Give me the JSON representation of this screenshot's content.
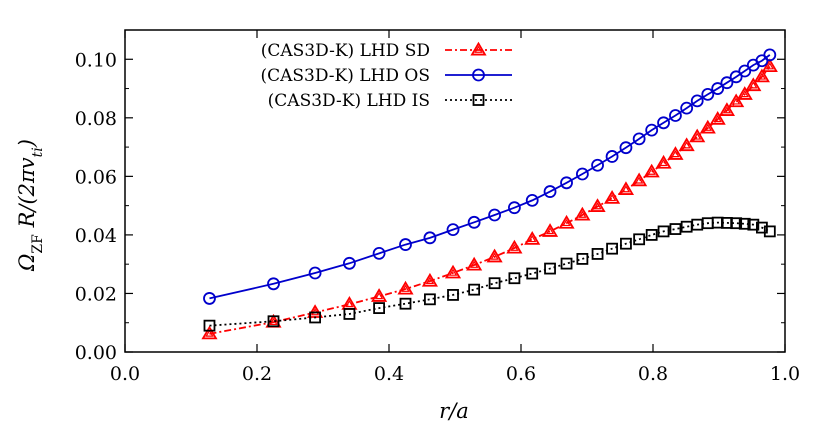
{
  "chart_data": {
    "type": "line",
    "xlabel": "r/a",
    "ylabel": "Ω_ZF R/(2πv_ti)",
    "xlim": [
      0.0,
      1.0
    ],
    "ylim": [
      0.0,
      0.11
    ],
    "x_ticks": [
      "0.0",
      "0.2",
      "0.4",
      "0.6",
      "0.8",
      "1.0"
    ],
    "y_ticks": [
      "0.00",
      "0.02",
      "0.04",
      "0.06",
      "0.08",
      "0.10"
    ],
    "legend_position": "top-center",
    "series": [
      {
        "name": "(CAS3D-K) LHD SD",
        "color": "#ff0000",
        "marker": "triangle",
        "line_style": "dash-dot",
        "x": [
          0.128,
          0.225,
          0.288,
          0.34,
          0.385,
          0.425,
          0.462,
          0.497,
          0.529,
          0.56,
          0.59,
          0.617,
          0.644,
          0.669,
          0.693,
          0.716,
          0.738,
          0.759,
          0.779,
          0.798,
          0.816,
          0.834,
          0.851,
          0.867,
          0.883,
          0.898,
          0.912,
          0.926,
          0.939,
          0.952,
          0.965,
          0.977
        ],
        "y": [
          0.0062,
          0.0102,
          0.0135,
          0.0163,
          0.019,
          0.0215,
          0.0242,
          0.027,
          0.0297,
          0.0325,
          0.0355,
          0.0385,
          0.0412,
          0.044,
          0.0468,
          0.0497,
          0.0525,
          0.0555,
          0.0585,
          0.0615,
          0.0645,
          0.0675,
          0.0705,
          0.0735,
          0.0765,
          0.0795,
          0.0825,
          0.0855,
          0.088,
          0.091,
          0.094,
          0.0975
        ]
      },
      {
        "name": "(CAS3D-K) LHD OS",
        "color": "#0000cc",
        "marker": "circle",
        "line_style": "solid",
        "x": [
          0.128,
          0.225,
          0.288,
          0.34,
          0.385,
          0.425,
          0.462,
          0.497,
          0.529,
          0.56,
          0.59,
          0.617,
          0.644,
          0.669,
          0.693,
          0.716,
          0.738,
          0.759,
          0.779,
          0.798,
          0.816,
          0.834,
          0.851,
          0.867,
          0.883,
          0.898,
          0.912,
          0.926,
          0.939,
          0.952,
          0.965,
          0.977
        ],
        "y": [
          0.0183,
          0.0233,
          0.027,
          0.0303,
          0.0337,
          0.0367,
          0.039,
          0.0418,
          0.0443,
          0.0468,
          0.0493,
          0.0518,
          0.0548,
          0.0578,
          0.0608,
          0.0638,
          0.0668,
          0.0698,
          0.0728,
          0.0758,
          0.0783,
          0.0808,
          0.0833,
          0.0858,
          0.088,
          0.09,
          0.092,
          0.094,
          0.096,
          0.098,
          0.0995,
          0.1015
        ]
      },
      {
        "name": "(CAS3D-K) LHD IS",
        "color": "#000000",
        "marker": "square",
        "line_style": "dotted",
        "x": [
          0.128,
          0.225,
          0.288,
          0.34,
          0.385,
          0.425,
          0.462,
          0.497,
          0.529,
          0.56,
          0.59,
          0.617,
          0.644,
          0.669,
          0.693,
          0.716,
          0.738,
          0.759,
          0.779,
          0.798,
          0.816,
          0.834,
          0.851,
          0.867,
          0.883,
          0.898,
          0.912,
          0.926,
          0.939,
          0.952,
          0.965,
          0.977
        ],
        "y": [
          0.009,
          0.0105,
          0.0118,
          0.013,
          0.015,
          0.0165,
          0.018,
          0.0195,
          0.0213,
          0.0235,
          0.0252,
          0.0268,
          0.0285,
          0.0302,
          0.0318,
          0.0335,
          0.0353,
          0.037,
          0.0385,
          0.04,
          0.0412,
          0.042,
          0.0428,
          0.0435,
          0.044,
          0.0442,
          0.0441,
          0.044,
          0.0438,
          0.0435,
          0.0425,
          0.0412
        ]
      }
    ]
  }
}
